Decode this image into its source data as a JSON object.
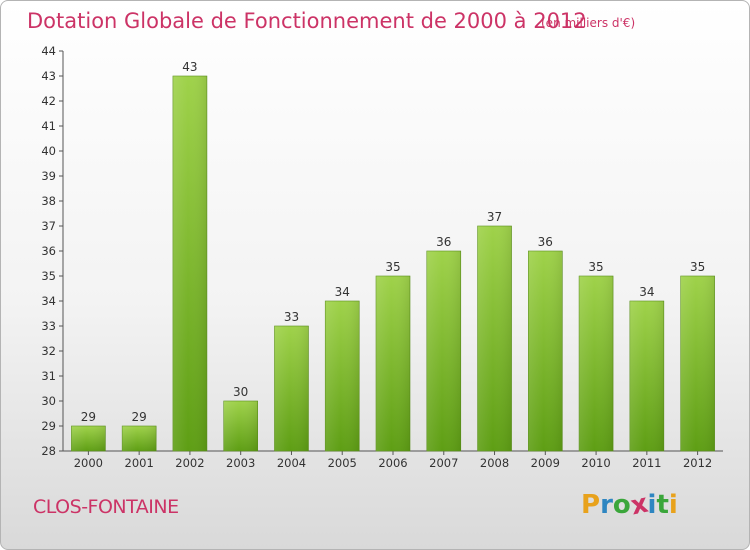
{
  "title": "Dotation Globale de Fonctionnement de 2000 à 2012",
  "subtitle": "(en milliers d'€)",
  "town": "CLOS-FONTAINE",
  "logo": {
    "letters": [
      "P",
      "r",
      "o",
      "x",
      "i",
      "t",
      "i"
    ],
    "colors": [
      "#e8a21c",
      "#2e86c1",
      "#3aa63a",
      "#cc3366",
      "#2e86c1",
      "#3aa63a",
      "#e8a21c"
    ]
  },
  "chart_data": {
    "type": "bar",
    "title": "Dotation Globale de Fonctionnement de 2000 à 2012",
    "subtitle": "(en milliers d'€)",
    "categories": [
      "2000",
      "2001",
      "2002",
      "2003",
      "2004",
      "2005",
      "2006",
      "2007",
      "2008",
      "2009",
      "2010",
      "2011",
      "2012"
    ],
    "values": [
      29,
      29,
      43,
      30,
      33,
      34,
      35,
      36,
      37,
      36,
      35,
      34,
      35
    ],
    "ylim": [
      28,
      44
    ],
    "yticks": [
      28,
      29,
      30,
      31,
      32,
      33,
      34,
      35,
      36,
      37,
      38,
      39,
      40,
      41,
      42,
      43,
      44
    ],
    "xlabel": "",
    "ylabel": "",
    "grid": false,
    "bar_color_top": "#9fd24a",
    "bar_color_bottom": "#5e9e14"
  }
}
